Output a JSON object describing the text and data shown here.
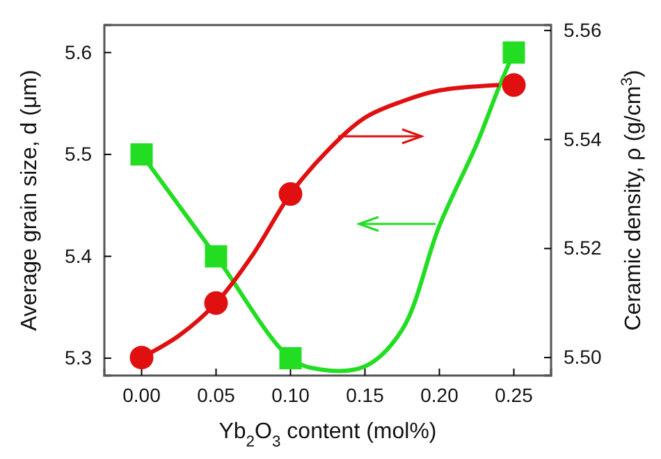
{
  "chart_data": {
    "type": "scatter",
    "xlabel": "Yb$_{2}$O$_{3}$ content (mol%)",
    "ylabel": "Average grain size, d (μm)",
    "y2label": "Ceramic density, ρ (g/cm$^{3}$)",
    "x": [
      0,
      0.05,
      0.1,
      0.25
    ],
    "xlim": [
      -0.025,
      0.275
    ],
    "xticks": [
      {
        "value": 0,
        "label": "0.00"
      },
      {
        "value": 0.05,
        "label": "0.05"
      },
      {
        "value": 0.1,
        "label": "0.10"
      },
      {
        "value": 0.15,
        "label": "0.15"
      },
      {
        "value": 0.2,
        "label": "0.20"
      },
      {
        "value": 0.25,
        "label": "0.25"
      }
    ],
    "ylim": [
      5.283,
      5.627
    ],
    "yticks": [
      {
        "value": 5.3,
        "label": "5.3"
      },
      {
        "value": 5.4,
        "label": "5.4"
      },
      {
        "value": 5.5,
        "label": "5.5"
      },
      {
        "value": 5.6,
        "label": "5.6"
      }
    ],
    "y2lim": [
      5.4967,
      5.561
    ],
    "y2ticks": [
      {
        "value": 5.5,
        "label": "5.50"
      },
      {
        "value": 5.52,
        "label": "5.52"
      },
      {
        "value": 5.54,
        "label": "5.54"
      },
      {
        "value": 5.56,
        "label": "5.56"
      }
    ],
    "series": [
      {
        "type": "line",
        "color": "#22dd22",
        "x": [
          0,
          0.05,
          0.1,
          0.12,
          0.15,
          0.175,
          0.2,
          0.225,
          0.24,
          0.25
        ],
        "values": [
          5.5,
          5.4,
          5.3,
          5.289,
          5.292,
          5.328,
          5.43,
          5.51,
          5.566,
          5.6
        ]
      },
      {
        "type": "line",
        "axis": "y2",
        "color": "#e01010",
        "x": [
          0,
          0.025,
          0.05,
          0.075,
          0.1,
          0.125,
          0.15,
          0.175,
          0.2,
          0.24
        ],
        "values": [
          5.5,
          5.504,
          5.51,
          5.519,
          5.53,
          5.538,
          5.544,
          5.547,
          5.549,
          5.55
        ]
      },
      {
        "marker": "square",
        "color": "#22dd22",
        "values": [
          5.5,
          5.4,
          5.3,
          5.6
        ]
      },
      {
        "marker": "circle",
        "axis": "y2",
        "color": "#e01010",
        "values": [
          5.5,
          5.51,
          5.53,
          5.55
        ]
      }
    ]
  }
}
